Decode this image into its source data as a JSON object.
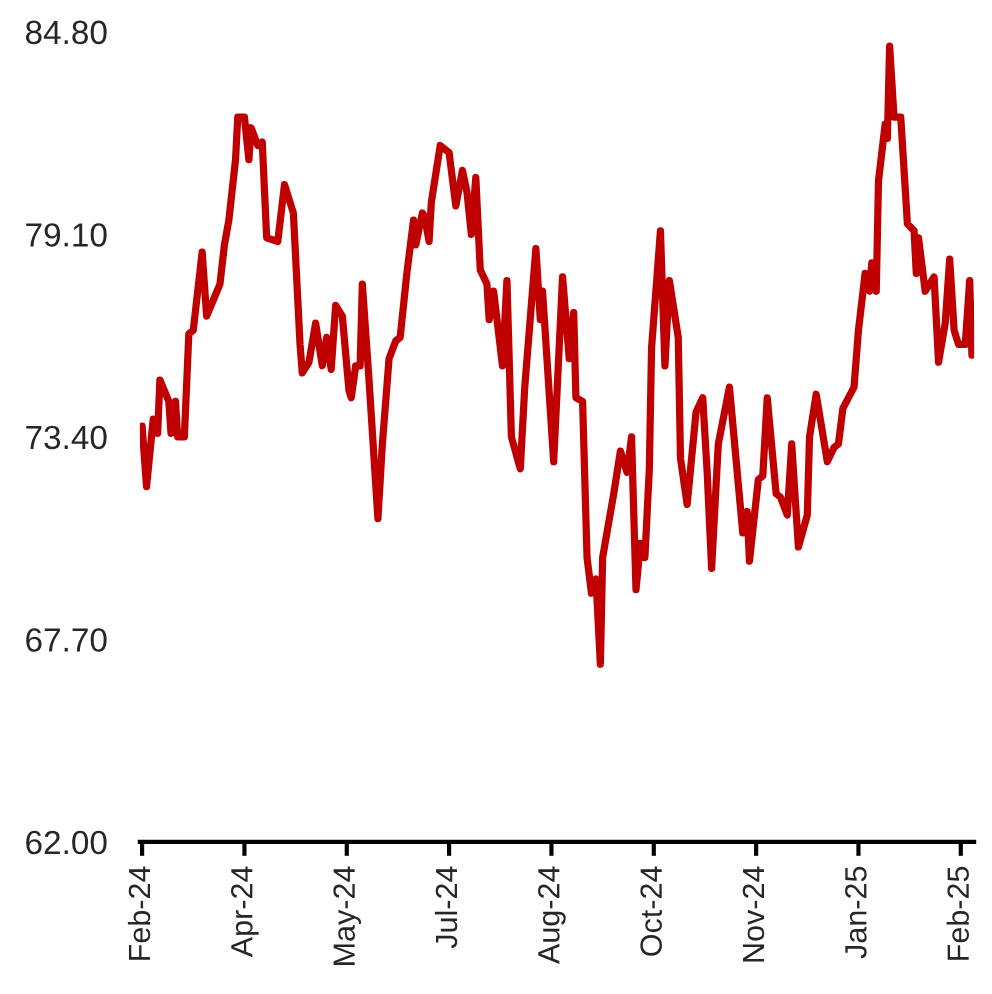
{
  "chart_data": {
    "type": "line",
    "x": [
      "2024-02-20",
      "2024-02-22",
      "2024-02-25",
      "2024-02-27",
      "2024-02-28",
      "2024-03-03",
      "2024-03-04",
      "2024-03-06",
      "2024-03-07",
      "2024-03-10",
      "2024-03-12",
      "2024-03-14",
      "2024-03-18",
      "2024-03-20",
      "2024-03-24",
      "2024-03-26",
      "2024-03-28",
      "2024-03-30",
      "2024-04-02",
      "2024-04-03",
      "2024-04-06",
      "2024-04-08",
      "2024-04-09",
      "2024-04-12",
      "2024-04-14",
      "2024-04-16",
      "2024-04-21",
      "2024-04-24",
      "2024-04-28",
      "2024-05-01",
      "2024-05-02",
      "2024-05-05",
      "2024-05-08",
      "2024-05-11",
      "2024-05-13",
      "2024-05-15",
      "2024-05-17",
      "2024-05-20",
      "2024-05-23",
      "2024-05-24",
      "2024-05-26",
      "2024-05-28",
      "2024-05-29",
      "2024-06-01",
      "2024-06-05",
      "2024-06-07",
      "2024-06-10",
      "2024-06-13",
      "2024-06-15",
      "2024-06-18",
      "2024-06-21",
      "2024-06-22",
      "2024-06-25",
      "2024-06-26",
      "2024-06-28",
      "2024-06-29",
      "2024-07-03",
      "2024-07-07",
      "2024-07-10",
      "2024-07-13",
      "2024-07-15",
      "2024-07-17",
      "2024-07-19",
      "2024-07-21",
      "2024-07-24",
      "2024-07-25",
      "2024-07-27",
      "2024-07-31",
      "2024-08-02",
      "2024-08-04",
      "2024-08-08",
      "2024-08-10",
      "2024-08-15",
      "2024-08-17",
      "2024-08-18",
      "2024-08-23",
      "2024-08-27",
      "2024-08-30",
      "2024-09-01",
      "2024-09-02",
      "2024-09-05",
      "2024-09-07",
      "2024-09-09",
      "2024-09-11",
      "2024-09-13",
      "2024-09-14",
      "2024-09-19",
      "2024-09-22",
      "2024-09-25",
      "2024-09-27",
      "2024-09-29",
      "2024-10-01",
      "2024-10-03",
      "2024-10-05",
      "2024-10-06",
      "2024-10-10",
      "2024-10-12",
      "2024-10-14",
      "2024-10-18",
      "2024-10-19",
      "2024-10-22",
      "2024-10-26",
      "2024-10-29",
      "2024-10-31",
      "2024-11-02",
      "2024-11-05",
      "2024-11-10",
      "2024-11-16",
      "2024-11-18",
      "2024-11-19",
      "2024-11-23",
      "2024-11-25",
      "2024-11-27",
      "2024-12-01",
      "2024-12-03",
      "2024-12-06",
      "2024-12-08",
      "2024-12-11",
      "2024-12-15",
      "2024-12-16",
      "2024-12-19",
      "2024-12-24",
      "2024-12-27",
      "2024-12-29",
      "2024-12-31",
      "2025-01-05",
      "2025-01-07",
      "2025-01-10",
      "2025-01-12",
      "2025-01-13",
      "2025-01-15",
      "2025-01-16",
      "2025-01-19",
      "2025-01-20",
      "2025-01-21",
      "2025-01-23",
      "2025-01-26",
      "2025-01-29",
      "2025-02-01",
      "2025-02-02",
      "2025-02-03",
      "2025-02-06",
      "2025-02-10",
      "2025-02-12",
      "2025-02-15",
      "2025-02-17",
      "2025-02-19",
      "2025-02-21",
      "2025-02-24",
      "2025-02-26",
      "2025-02-27"
    ],
    "series": [
      {
        "color": "#c00000",
        "values": [
          73.7,
          72.0,
          73.9,
          73.5,
          75.0,
          74.4,
          73.5,
          74.4,
          73.4,
          73.4,
          76.3,
          76.4,
          78.6,
          76.8,
          77.4,
          77.7,
          78.8,
          79.5,
          81.2,
          82.4,
          82.4,
          81.2,
          82.1,
          81.6,
          81.7,
          79.0,
          78.9,
          80.5,
          79.7,
          76.0,
          75.2,
          75.5,
          76.6,
          75.4,
          76.2,
          75.3,
          77.1,
          76.8,
          74.7,
          74.5,
          75.4,
          75.4,
          77.7,
          75.0,
          71.1,
          73.2,
          75.6,
          76.1,
          76.2,
          78.0,
          79.5,
          78.8,
          79.7,
          79.6,
          78.9,
          80.0,
          81.6,
          81.4,
          79.9,
          80.9,
          80.3,
          79.1,
          80.7,
          78.1,
          77.7,
          76.7,
          77.5,
          75.4,
          77.8,
          73.4,
          72.5,
          74.8,
          78.7,
          76.7,
          77.5,
          72.7,
          77.9,
          75.6,
          76.9,
          74.5,
          74.4,
          70.0,
          69.0,
          69.4,
          67.0,
          70.0,
          71.8,
          73.0,
          72.4,
          73.4,
          69.1,
          70.4,
          70.0,
          72.5,
          75.9,
          79.2,
          75.4,
          77.8,
          76.2,
          72.8,
          71.5,
          74.1,
          74.5,
          72.4,
          69.7,
          73.2,
          74.8,
          70.7,
          71.3,
          69.9,
          72.2,
          72.3,
          74.5,
          71.8,
          71.7,
          71.2,
          73.2,
          70.3,
          71.2,
          73.4,
          74.6,
          72.7,
          73.1,
          73.2,
          74.2,
          74.8,
          76.4,
          78.0,
          77.5,
          78.3,
          77.5,
          80.6,
          82.2,
          81.8,
          84.4,
          82.4,
          82.4,
          79.4,
          79.2,
          78.0,
          79.0,
          77.5,
          77.9,
          75.5,
          76.6,
          78.4,
          76.4,
          76.0,
          76.0,
          77.8,
          75.7
        ]
      }
    ],
    "xlim": [
      "2024-02-19",
      "2025-02-28"
    ],
    "xticks": [
      {
        "value": "2024-02-20",
        "label": "Feb-24"
      },
      {
        "value": "2024-04-06",
        "label": "Apr-24"
      },
      {
        "value": "2024-05-22",
        "label": "May-24"
      },
      {
        "value": "2024-07-07",
        "label": "Jul-24"
      },
      {
        "value": "2024-08-22",
        "label": "Aug-24"
      },
      {
        "value": "2024-10-07",
        "label": "Oct-24"
      },
      {
        "value": "2024-11-22",
        "label": "Nov-24"
      },
      {
        "value": "2025-01-07",
        "label": "Jan-25"
      },
      {
        "value": "2025-02-22",
        "label": "Feb-25"
      }
    ],
    "ylim": [
      62,
      84.8
    ],
    "yticks": [
      {
        "value": 62,
        "label": "62.00"
      },
      {
        "value": 67.7,
        "label": "67.70"
      },
      {
        "value": 73.4,
        "label": "73.40"
      },
      {
        "value": 79.1,
        "label": "79.10"
      },
      {
        "value": 84.8,
        "label": "84.80"
      }
    ],
    "grid": false,
    "line_style": "solid"
  }
}
